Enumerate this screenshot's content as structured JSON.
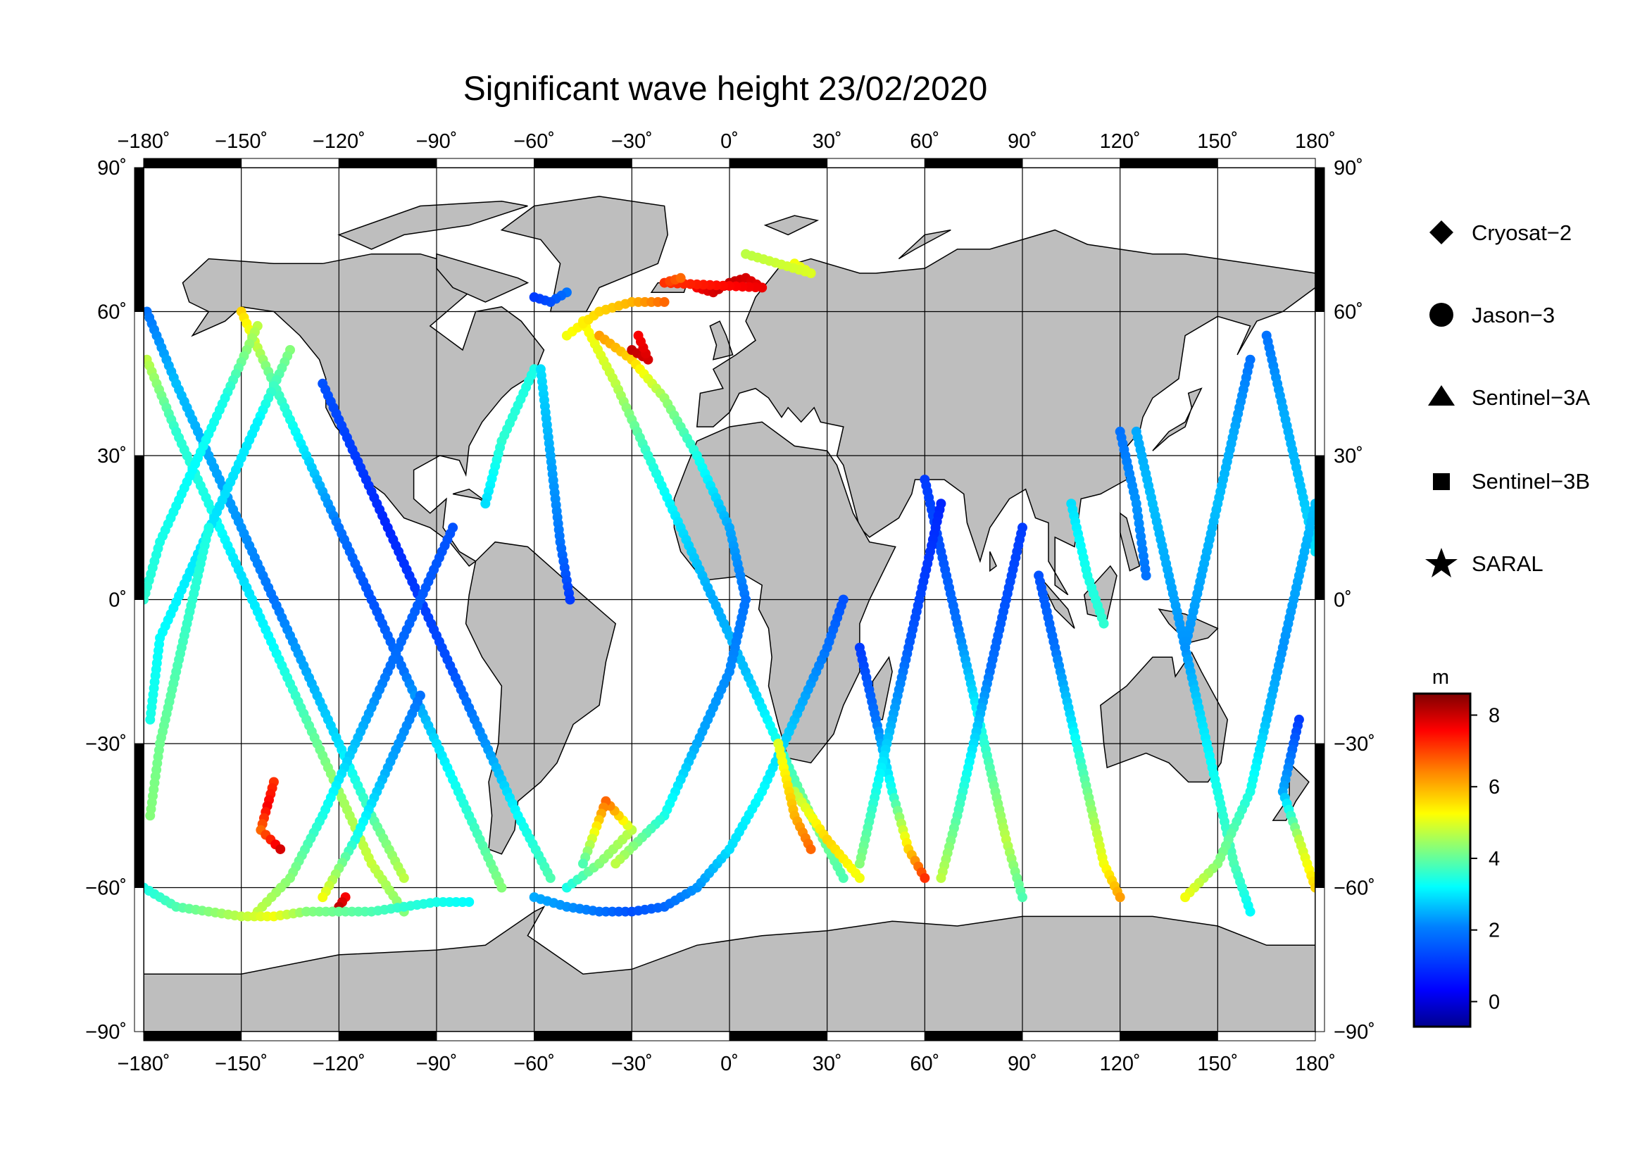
{
  "title": "Significant wave height 23/02/2020",
  "map": {
    "projection": "equirectangular",
    "lon_range": [
      -180,
      180
    ],
    "lat_range": [
      -90,
      90
    ],
    "grid": true,
    "land_color": "#bebebe",
    "ocean_color": "#ffffff",
    "frame": "black-white-checker"
  },
  "axes": {
    "lon_ticks": [
      "−180˚",
      "−150˚",
      "−120˚",
      "−90˚",
      "−60˚",
      "−30˚",
      "0˚",
      "30˚",
      "60˚",
      "90˚",
      "120˚",
      "150˚",
      "180˚"
    ],
    "lat_ticks_left": [
      "90˚",
      "60˚",
      "30˚",
      "0˚",
      "−30˚",
      "−60˚",
      "−90˚"
    ],
    "lat_ticks_right": [
      "90˚",
      "60˚",
      "30˚",
      "0˚",
      "−30˚",
      "−60˚",
      "−90˚"
    ]
  },
  "legend": [
    {
      "label": "Cryosat−2",
      "symbol": "diamond"
    },
    {
      "label": "Jason−3",
      "symbol": "circle"
    },
    {
      "label": "Sentinel−3A",
      "symbol": "triangle"
    },
    {
      "label": "Sentinel−3B",
      "symbol": "square"
    },
    {
      "label": "SARAL",
      "symbol": "star"
    }
  ],
  "colorbar": {
    "unit": "m",
    "range": [
      -0.7,
      8.6
    ],
    "ticks": [
      "8",
      "6",
      "4",
      "2",
      "0"
    ],
    "colormap": "jet",
    "colors": [
      "#00008f",
      "#0000ff",
      "#0080ff",
      "#00ffff",
      "#80ff80",
      "#ffff00",
      "#ff8000",
      "#ff0000",
      "#800000"
    ]
  },
  "chart_data": {
    "type": "scatter",
    "title": "Significant wave height 23/02/2020",
    "xlabel": "",
    "ylabel": "",
    "xlim": [
      -180,
      180
    ],
    "ylim": [
      -90,
      90
    ],
    "color_value_unit": "m",
    "tracks": [
      {
        "points": [
          [
            -179,
            50,
            4.5
          ],
          [
            -170,
            35,
            3.2
          ],
          [
            -160,
            20,
            3.0
          ],
          [
            -150,
            5,
            2.5
          ],
          [
            -140,
            -10,
            2.8
          ],
          [
            -130,
            -25,
            3.5
          ],
          [
            -120,
            -40,
            4.2
          ],
          [
            -110,
            -55,
            4.6
          ],
          [
            -100,
            -65,
            4.0
          ]
        ]
      },
      {
        "points": [
          [
            -179,
            60,
            1.5
          ],
          [
            -170,
            45,
            2.2
          ],
          [
            -160,
            30,
            2.0
          ],
          [
            -150,
            15,
            1.8
          ],
          [
            -140,
            0,
            1.5
          ],
          [
            -130,
            -15,
            2.0
          ],
          [
            -120,
            -30,
            2.5
          ],
          [
            -110,
            -45,
            3.5
          ],
          [
            -100,
            -58,
            4.5
          ]
        ]
      },
      {
        "points": [
          [
            -150,
            60,
            5.5
          ],
          [
            -140,
            45,
            3.5
          ],
          [
            -130,
            30,
            2.5
          ],
          [
            -120,
            15,
            1.5
          ],
          [
            -110,
            0,
            1.2
          ],
          [
            -100,
            -15,
            1.5
          ],
          [
            -90,
            -30,
            2.5
          ],
          [
            -80,
            -45,
            3.2
          ],
          [
            -70,
            -60,
            4.0
          ]
        ]
      },
      {
        "points": [
          [
            -145,
            57,
            4.5
          ],
          [
            -155,
            42,
            3.0
          ],
          [
            -165,
            27,
            2.8
          ],
          [
            -175,
            12,
            3.0
          ],
          [
            -180,
            0,
            3.2
          ]
        ]
      },
      {
        "points": [
          [
            -135,
            52,
            4.0
          ],
          [
            -145,
            37,
            2.7
          ],
          [
            -155,
            22,
            2.5
          ],
          [
            -165,
            7,
            2.6
          ],
          [
            -175,
            -8,
            2.8
          ],
          [
            -178,
            -25,
            3.0
          ]
        ]
      },
      {
        "points": [
          [
            -125,
            45,
            1.2
          ],
          [
            -115,
            30,
            1.0
          ],
          [
            -105,
            15,
            0.8
          ],
          [
            -95,
            0,
            1.0
          ],
          [
            -85,
            -15,
            1.2
          ],
          [
            -75,
            -30,
            1.8
          ],
          [
            -65,
            -45,
            2.8
          ],
          [
            -55,
            -58,
            3.5
          ]
        ]
      },
      {
        "points": [
          [
            -95,
            -20,
            1.5
          ],
          [
            -105,
            -35,
            2.0
          ],
          [
            -115,
            -50,
            3.0
          ],
          [
            -125,
            -62,
            5.0
          ]
        ]
      },
      {
        "points": [
          [
            -85,
            15,
            1.2
          ],
          [
            -95,
            0,
            1.3
          ],
          [
            -105,
            -15,
            1.5
          ],
          [
            -115,
            -30,
            2.2
          ],
          [
            -125,
            -45,
            3.0
          ],
          [
            -135,
            -58,
            4.0
          ],
          [
            -145,
            -65,
            4.5
          ]
        ]
      },
      {
        "points": [
          [
            -140,
            -38,
            7.0
          ],
          [
            -142,
            -43,
            7.5
          ],
          [
            -144,
            -48,
            6.5
          ],
          [
            -138,
            -52,
            7.8
          ]
        ]
      },
      {
        "points": [
          [
            -118,
            -62,
            7.5
          ],
          [
            -120,
            -64,
            8.0
          ],
          [
            -122,
            -65,
            7.0
          ]
        ]
      },
      {
        "points": [
          [
            -60,
            48,
            3.0
          ],
          [
            -70,
            33,
            3.2
          ],
          [
            -75,
            20,
            2.5
          ]
        ]
      },
      {
        "points": [
          [
            -58,
            48,
            2.5
          ],
          [
            -55,
            30,
            2.0
          ],
          [
            -52,
            12,
            1.5
          ],
          [
            -49,
            0,
            1.0
          ]
        ]
      },
      {
        "points": [
          [
            -45,
            58,
            5.2
          ],
          [
            -35,
            45,
            4.5
          ],
          [
            -25,
            30,
            3.2
          ],
          [
            -15,
            15,
            2.5
          ],
          [
            -5,
            0,
            2.0
          ],
          [
            5,
            -15,
            2.2
          ],
          [
            15,
            -30,
            3.0
          ],
          [
            25,
            -45,
            4.0
          ],
          [
            35,
            -58,
            3.5
          ]
        ]
      },
      {
        "points": [
          [
            -50,
            55,
            5.0
          ],
          [
            -40,
            60,
            5.5
          ],
          [
            -30,
            62,
            5.8
          ],
          [
            -20,
            62,
            6.5
          ]
        ]
      },
      {
        "points": [
          [
            -40,
            55,
            6.0
          ],
          [
            -30,
            50,
            5.5
          ],
          [
            -20,
            42,
            4.2
          ],
          [
            -10,
            30,
            3.0
          ],
          [
            0,
            15,
            2.0
          ],
          [
            5,
            0,
            1.5
          ],
          [
            0,
            -15,
            1.7
          ],
          [
            -10,
            -30,
            2.0
          ],
          [
            -20,
            -45,
            3.0
          ],
          [
            -35,
            -55,
            4.5
          ]
        ]
      },
      {
        "points": [
          [
            -30,
            52,
            8.0
          ],
          [
            -25,
            50,
            7.8
          ],
          [
            -28,
            55,
            7.5
          ]
        ]
      },
      {
        "points": [
          [
            -10,
            65,
            7.5
          ],
          [
            -5,
            64,
            7.8
          ],
          [
            0,
            66,
            8.0
          ],
          [
            5,
            67,
            7.8
          ],
          [
            10,
            65,
            7.6
          ],
          [
            -20,
            66,
            7.0
          ],
          [
            -15,
            67,
            6.5
          ]
        ]
      },
      {
        "points": [
          [
            -50,
            -60,
            3.0
          ],
          [
            -40,
            -55,
            4.0
          ],
          [
            -30,
            -48,
            4.5
          ],
          [
            -38,
            -42,
            6.5
          ],
          [
            -45,
            -55,
            3.5
          ]
        ]
      },
      {
        "points": [
          [
            -60,
            -62,
            2.0
          ],
          [
            -50,
            -64,
            1.8
          ],
          [
            -40,
            -65,
            1.5
          ],
          [
            -30,
            -65,
            1.2
          ],
          [
            -20,
            -64,
            1.4
          ],
          [
            -10,
            -60,
            1.8
          ],
          [
            0,
            -52,
            2.5
          ],
          [
            10,
            -40,
            2.8
          ],
          [
            20,
            -25,
            2.2
          ],
          [
            30,
            -10,
            1.5
          ],
          [
            35,
            0,
            1.2
          ]
        ]
      },
      {
        "points": [
          [
            20,
            -40,
            4.5
          ],
          [
            30,
            -50,
            5.5
          ],
          [
            40,
            -58,
            5.0
          ]
        ]
      },
      {
        "points": [
          [
            15,
            -30,
            4.8
          ],
          [
            20,
            -45,
            5.8
          ],
          [
            25,
            -52,
            6.5
          ]
        ]
      },
      {
        "points": [
          [
            40,
            -10,
            1.0
          ],
          [
            45,
            -25,
            1.5
          ],
          [
            50,
            -40,
            3.0
          ],
          [
            55,
            -52,
            5.5
          ],
          [
            60,
            -58,
            7.0
          ]
        ]
      },
      {
        "points": [
          [
            60,
            25,
            1.0
          ],
          [
            65,
            10,
            1.2
          ],
          [
            70,
            -5,
            1.5
          ],
          [
            75,
            -20,
            2.5
          ],
          [
            80,
            -35,
            3.5
          ],
          [
            85,
            -50,
            4.5
          ],
          [
            90,
            -62,
            3.5
          ]
        ]
      },
      {
        "points": [
          [
            65,
            20,
            0.8
          ],
          [
            60,
            5,
            1.0
          ],
          [
            55,
            -10,
            1.3
          ],
          [
            50,
            -25,
            2.0
          ],
          [
            45,
            -40,
            3.0
          ],
          [
            40,
            -55,
            4.0
          ]
        ]
      },
      {
        "points": [
          [
            90,
            15,
            1.0
          ],
          [
            85,
            0,
            1.2
          ],
          [
            80,
            -15,
            1.5
          ],
          [
            75,
            -30,
            2.5
          ],
          [
            70,
            -45,
            3.5
          ],
          [
            65,
            -58,
            4.5
          ]
        ]
      },
      {
        "points": [
          [
            95,
            5,
            1.2
          ],
          [
            100,
            -10,
            1.5
          ],
          [
            105,
            -25,
            2.5
          ],
          [
            110,
            -40,
            3.8
          ],
          [
            115,
            -55,
            5.0
          ],
          [
            120,
            -62,
            6.0
          ]
        ]
      },
      {
        "points": [
          [
            105,
            20,
            2.5
          ],
          [
            110,
            5,
            3.0
          ],
          [
            115,
            -5,
            3.2
          ]
        ]
      },
      {
        "points": [
          [
            125,
            35,
            2.0
          ],
          [
            130,
            20,
            2.2
          ],
          [
            135,
            5,
            2.0
          ],
          [
            140,
            -10,
            1.8
          ],
          [
            145,
            -25,
            2.5
          ],
          [
            150,
            -40,
            3.0
          ],
          [
            155,
            -55,
            3.5
          ],
          [
            160,
            -65,
            2.8
          ]
        ]
      },
      {
        "points": [
          [
            120,
            35,
            1.5
          ],
          [
            125,
            20,
            1.8
          ],
          [
            128,
            5,
            1.5
          ]
        ]
      },
      {
        "points": [
          [
            165,
            55,
            1.5
          ],
          [
            170,
            40,
            2.0
          ],
          [
            175,
            25,
            2.2
          ],
          [
            180,
            10,
            2.5
          ]
        ]
      },
      {
        "points": [
          [
            160,
            50,
            1.5
          ],
          [
            155,
            35,
            2.0
          ],
          [
            150,
            20,
            2.2
          ],
          [
            145,
            5,
            2.0
          ],
          [
            140,
            -10,
            1.8
          ]
        ]
      },
      {
        "points": [
          [
            180,
            20,
            2.2
          ],
          [
            175,
            5,
            2.0
          ],
          [
            170,
            -10,
            1.8
          ],
          [
            165,
            -25,
            2.2
          ],
          [
            160,
            -40,
            3.0
          ],
          [
            150,
            -55,
            4.0
          ],
          [
            140,
            -62,
            5.0
          ]
        ]
      },
      {
        "points": [
          [
            175,
            -25,
            1.0
          ],
          [
            170,
            -40,
            2.0
          ],
          [
            175,
            -50,
            4.5
          ],
          [
            180,
            -60,
            5.5
          ]
        ]
      },
      {
        "points": [
          [
            -180,
            -60,
            3.0
          ],
          [
            -170,
            -64,
            3.5
          ],
          [
            -160,
            -65,
            4.0
          ],
          [
            -150,
            -66,
            4.5
          ],
          [
            -140,
            -66,
            5.0
          ],
          [
            -130,
            -65,
            4.0
          ],
          [
            -110,
            -65,
            3.5
          ],
          [
            -100,
            -64,
            3.2
          ],
          [
            -90,
            -63,
            3.0
          ],
          [
            -80,
            -63,
            2.8
          ]
        ]
      },
      {
        "points": [
          [
            -160,
            15,
            3.0
          ],
          [
            -165,
            0,
            3.2
          ],
          [
            -170,
            -15,
            3.5
          ],
          [
            -175,
            -30,
            3.8
          ],
          [
            -178,
            -45,
            4.0
          ]
        ]
      },
      {
        "points": [
          [
            -50,
            64,
            1.5
          ],
          [
            -55,
            62,
            1.2
          ],
          [
            -60,
            63,
            1.0
          ]
        ]
      },
      {
        "points": [
          [
            20,
            70,
            5.0
          ],
          [
            25,
            68,
            4.8
          ],
          [
            5,
            72,
            4.5
          ]
        ]
      }
    ]
  }
}
